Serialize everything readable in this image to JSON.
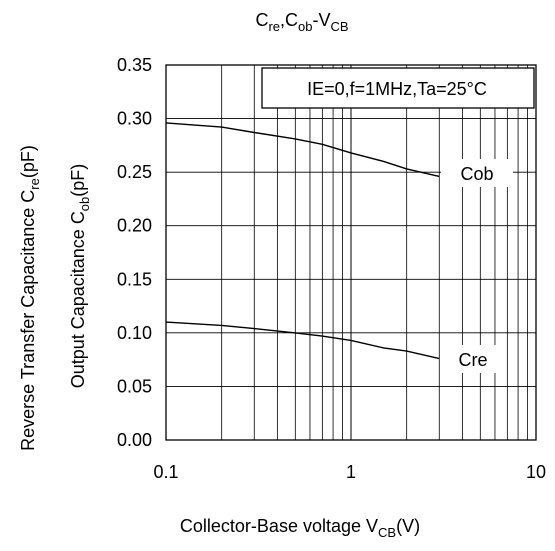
{
  "chart_data": {
    "type": "line",
    "title": {
      "a": "C",
      "a_sub": "re",
      "b": ",C",
      "b_sub": "ob",
      "c": "-V",
      "c_sub": "CB"
    },
    "xlabel": {
      "main": "Collector-Base voltage V",
      "sub": "CB",
      "tail": "(V)"
    },
    "ylabel_outer": {
      "main": "Reverse Transfer Capacitance C",
      "sub": "re",
      "tail": "(pF)"
    },
    "ylabel_inner": {
      "main": "Output Capacitance C",
      "sub": "ob",
      "tail": "(pF)"
    },
    "x_scale": "log",
    "xlim": [
      0.1,
      10
    ],
    "ylim": [
      0.0,
      0.35
    ],
    "x_ticks": [
      0.1,
      1,
      10
    ],
    "x_tick_labels": [
      "0.1",
      "1",
      "10"
    ],
    "y_ticks": [
      0.0,
      0.05,
      0.1,
      0.15,
      0.2,
      0.25,
      0.3,
      0.35
    ],
    "y_tick_labels": [
      "0.00",
      "0.05",
      "0.10",
      "0.15",
      "0.20",
      "0.25",
      "0.30",
      "0.35"
    ],
    "grid": true,
    "condition_box": "IE=0,f=1MHz,Ta=25°C",
    "series": [
      {
        "name": "Cob",
        "x": [
          0.1,
          0.2,
          0.3,
          0.5,
          0.7,
          1.0,
          1.5,
          2.0,
          3.0
        ],
        "y": [
          0.296,
          0.292,
          0.287,
          0.281,
          0.276,
          0.268,
          0.26,
          0.253,
          0.246
        ]
      },
      {
        "name": "Cre",
        "x": [
          0.1,
          0.2,
          0.3,
          0.5,
          0.7,
          1.0,
          1.5,
          2.0,
          3.0
        ],
        "y": [
          0.11,
          0.107,
          0.104,
          0.1,
          0.097,
          0.093,
          0.086,
          0.083,
          0.076
        ]
      }
    ]
  }
}
